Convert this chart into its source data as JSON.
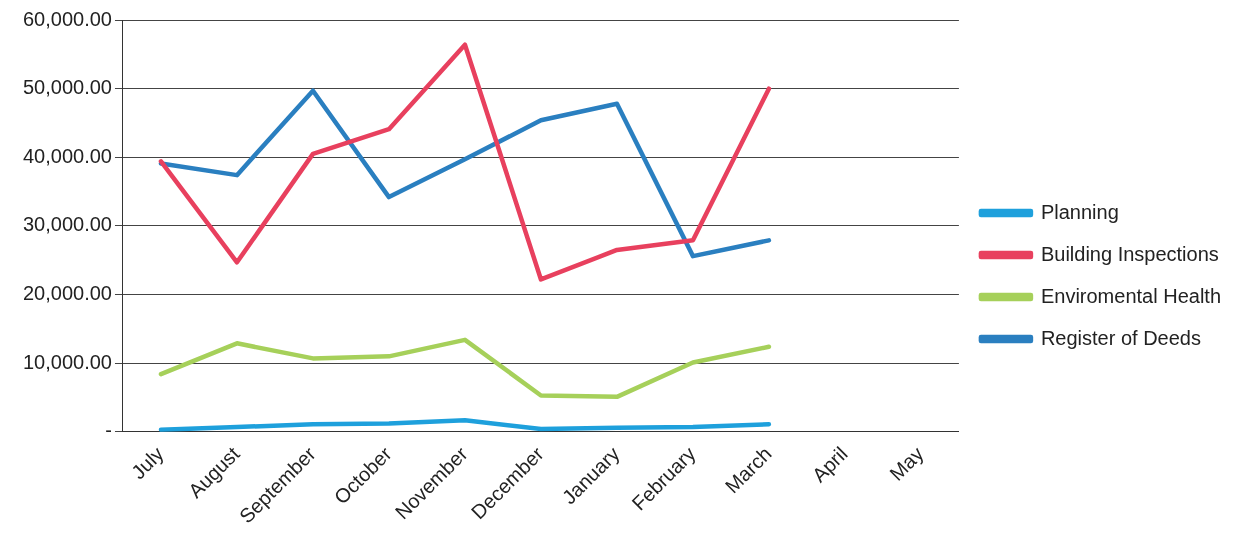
{
  "chart_data": {
    "type": "line",
    "categories": [
      "July",
      "August",
      "September",
      "October",
      "November",
      "December",
      "January",
      "February",
      "March",
      "April",
      "May"
    ],
    "series": [
      {
        "name": "Planning",
        "color": "#1ea0dc",
        "values": [
          300,
          700,
          1100,
          1200,
          1700,
          400,
          600,
          700,
          1100,
          null,
          null
        ]
      },
      {
        "name": "Building Inspections",
        "color": "#e8405e",
        "values": [
          39400,
          24700,
          40500,
          44100,
          56400,
          22200,
          26500,
          27900,
          50000,
          null,
          null
        ]
      },
      {
        "name": "Enviromental Health",
        "color": "#a6d05a",
        "values": [
          8400,
          12900,
          10700,
          11000,
          13400,
          5300,
          5100,
          10100,
          12400,
          null,
          null
        ]
      },
      {
        "name": "Register of Deeds",
        "color": "#2a7fc0",
        "values": [
          39100,
          37400,
          49700,
          34200,
          39700,
          45400,
          47800,
          25600,
          27900,
          null,
          null
        ]
      }
    ],
    "ylim": [
      0,
      60000
    ],
    "yticks": [
      {
        "value": 0,
        "label": "-"
      },
      {
        "value": 10000,
        "label": "10,000.00"
      },
      {
        "value": 20000,
        "label": "20,000.00"
      },
      {
        "value": 30000,
        "label": "30,000.00"
      },
      {
        "value": 40000,
        "label": "40,000.00"
      },
      {
        "value": 50000,
        "label": "50,000.00"
      },
      {
        "value": 60000,
        "label": "60,000.00"
      }
    ],
    "grid": "y",
    "legend": "right",
    "marker": "none",
    "line_style": "solid"
  }
}
